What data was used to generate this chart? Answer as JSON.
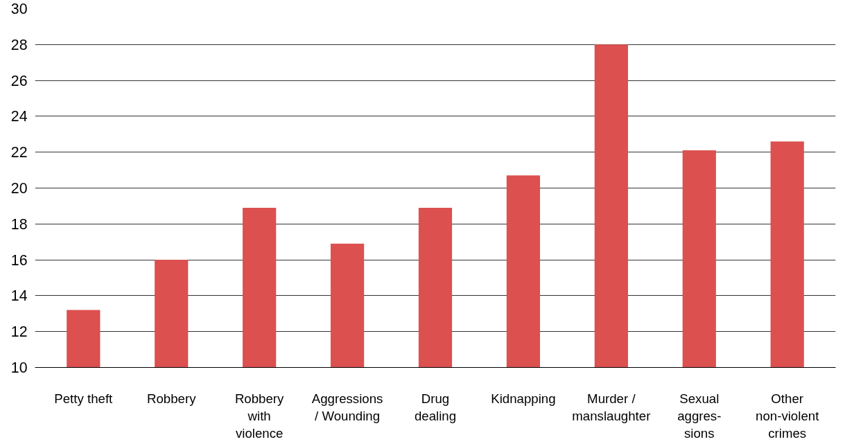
{
  "chart_data": {
    "type": "bar",
    "categories": [
      "Petty theft",
      "Robbery",
      "Robbery\nwith\nviolence",
      "Aggressions\n/ Wounding",
      "Drug\ndealing",
      "Kidnapping",
      "Murder /\nmanslaughter",
      "Sexual\naggres-\nsions",
      "Other\nnon-violent\ncrimes"
    ],
    "values": [
      13.2,
      16.0,
      18.9,
      16.9,
      18.9,
      20.7,
      28.0,
      22.1,
      22.6
    ],
    "color": "#dc504f",
    "ylim": [
      10,
      30
    ],
    "yticks": [
      10,
      12,
      14,
      16,
      18,
      20,
      22,
      24,
      26,
      28,
      30
    ],
    "grid": "y"
  }
}
